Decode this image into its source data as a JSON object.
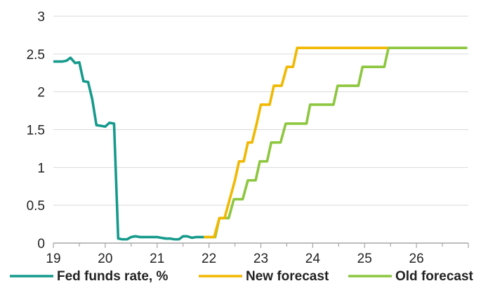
{
  "chart_data": {
    "type": "line",
    "title": "",
    "xlabel": "",
    "ylabel": "",
    "xlim": [
      19,
      27
    ],
    "ylim": [
      0,
      3
    ],
    "x_ticks": [
      "19",
      "20",
      "21",
      "22",
      "23",
      "24",
      "25",
      "26"
    ],
    "y_ticks": [
      "0",
      "0.5",
      "1",
      "1.5",
      "2",
      "2.5",
      "3"
    ],
    "grid": "horizontal",
    "legend_position": "bottom",
    "series": [
      {
        "name": "Fed funds rate, %",
        "color": "#159a8c",
        "points": [
          [
            19.0,
            2.4
          ],
          [
            19.17,
            2.4
          ],
          [
            19.25,
            2.41
          ],
          [
            19.33,
            2.45
          ],
          [
            19.42,
            2.38
          ],
          [
            19.5,
            2.39
          ],
          [
            19.58,
            2.14
          ],
          [
            19.67,
            2.13
          ],
          [
            19.75,
            1.9
          ],
          [
            19.83,
            1.56
          ],
          [
            19.92,
            1.55
          ],
          [
            20.0,
            1.54
          ],
          [
            20.08,
            1.59
          ],
          [
            20.17,
            1.58
          ],
          [
            20.25,
            0.06
          ],
          [
            20.33,
            0.05
          ],
          [
            20.42,
            0.05
          ],
          [
            20.5,
            0.08
          ],
          [
            20.58,
            0.09
          ],
          [
            20.67,
            0.08
          ],
          [
            20.75,
            0.08
          ],
          [
            20.83,
            0.08
          ],
          [
            20.92,
            0.08
          ],
          [
            21.0,
            0.08
          ],
          [
            21.08,
            0.07
          ],
          [
            21.17,
            0.06
          ],
          [
            21.25,
            0.06
          ],
          [
            21.33,
            0.05
          ],
          [
            21.42,
            0.05
          ],
          [
            21.5,
            0.09
          ],
          [
            21.58,
            0.09
          ],
          [
            21.67,
            0.07
          ],
          [
            21.75,
            0.08
          ],
          [
            21.83,
            0.08
          ],
          [
            21.9,
            0.08
          ]
        ]
      },
      {
        "name": "New forecast",
        "color": "#f0b800",
        "points": [
          [
            21.9,
            0.08
          ],
          [
            22.1,
            0.08
          ],
          [
            22.2,
            0.33
          ],
          [
            22.3,
            0.33
          ],
          [
            22.4,
            0.58
          ],
          [
            22.5,
            0.83
          ],
          [
            22.58,
            1.08
          ],
          [
            22.67,
            1.08
          ],
          [
            22.75,
            1.33
          ],
          [
            22.83,
            1.33
          ],
          [
            22.92,
            1.58
          ],
          [
            23.0,
            1.83
          ],
          [
            23.17,
            1.83
          ],
          [
            23.25,
            2.08
          ],
          [
            23.4,
            2.08
          ],
          [
            23.5,
            2.33
          ],
          [
            23.62,
            2.33
          ],
          [
            23.7,
            2.58
          ],
          [
            25.45,
            2.58
          ]
        ]
      },
      {
        "name": "Old forecast",
        "color": "#8dc63f",
        "points": [
          [
            21.9,
            0.08
          ],
          [
            22.12,
            0.08
          ],
          [
            22.2,
            0.33
          ],
          [
            22.38,
            0.33
          ],
          [
            22.48,
            0.58
          ],
          [
            22.65,
            0.58
          ],
          [
            22.75,
            0.83
          ],
          [
            22.9,
            0.83
          ],
          [
            22.98,
            1.08
          ],
          [
            23.12,
            1.08
          ],
          [
            23.2,
            1.33
          ],
          [
            23.38,
            1.33
          ],
          [
            23.48,
            1.58
          ],
          [
            23.88,
            1.58
          ],
          [
            23.95,
            1.83
          ],
          [
            24.4,
            1.83
          ],
          [
            24.48,
            2.08
          ],
          [
            24.88,
            2.08
          ],
          [
            24.96,
            2.33
          ],
          [
            25.38,
            2.33
          ],
          [
            25.46,
            2.58
          ],
          [
            26.98,
            2.58
          ]
        ]
      }
    ]
  }
}
